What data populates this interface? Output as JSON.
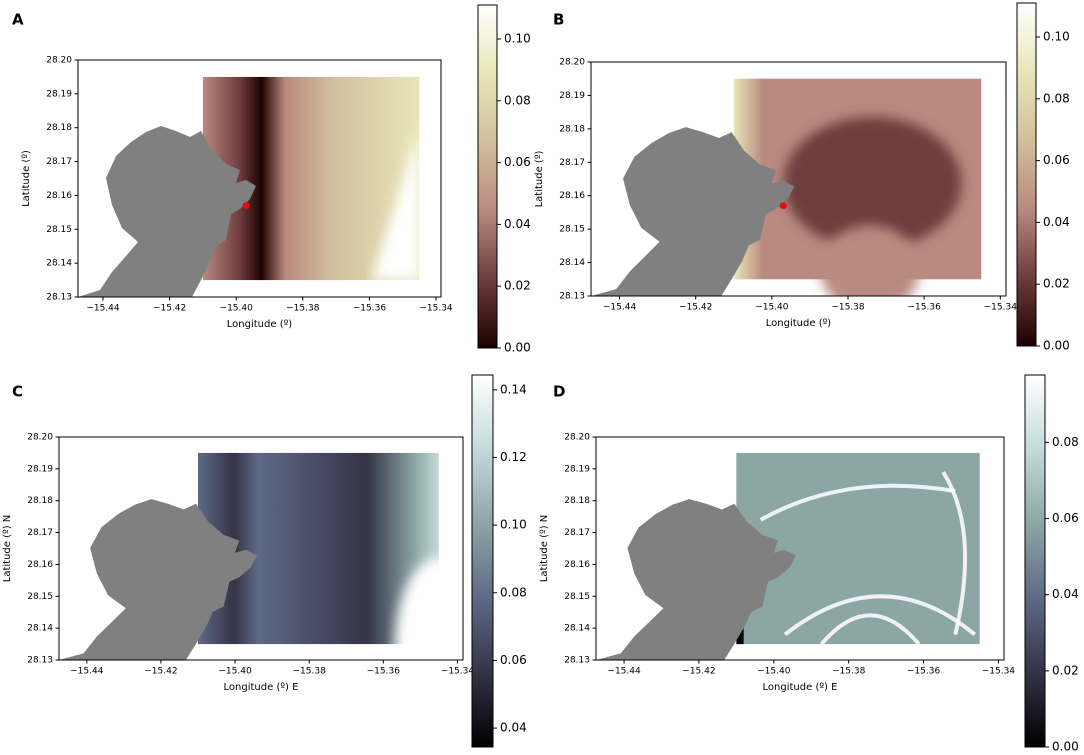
{
  "chart_data": [
    {
      "type": "heatmap",
      "panel": "A",
      "xlabel": "Longitude (º)",
      "ylabel": "Latitude (º)",
      "xlim": [
        -15.4475,
        -15.3385
      ],
      "ylim": [
        28.13,
        28.2
      ],
      "xticks": [
        {
          "value": -15.44,
          "label": "−15.44"
        },
        {
          "value": -15.42,
          "label": "−15.42"
        },
        {
          "value": -15.4,
          "label": "−15.40"
        },
        {
          "value": -15.38,
          "label": "−15.38"
        },
        {
          "value": -15.36,
          "label": "−15.36"
        },
        {
          "value": -15.34,
          "label": "−15.34"
        }
      ],
      "yticks": [
        28.13,
        28.14,
        28.15,
        28.16,
        28.17,
        28.18,
        28.19,
        {
          "value": 28.2,
          "label": "28.20"
        }
      ],
      "colorbar": {
        "lim": [
          0,
          0.111
        ],
        "ticks": [
          {
            "value": 0,
            "label": "0.00"
          },
          0.02,
          0.04,
          0.06,
          0.08,
          {
            "value": 0.1,
            "label": "0.10"
          }
        ]
      },
      "colormap": [
        "#1e0000",
        "#6e3c3c",
        "#b98a80",
        "#d2bf9c",
        "#e8e6b8",
        "#ffffff"
      ],
      "extent": [
        -15.41,
        -15.345,
        28.135,
        28.195
      ],
      "points": [
        {
          "x": -15.397,
          "y": 28.157,
          "color": "#e01010"
        }
      ]
    },
    {
      "type": "heatmap",
      "panel": "B",
      "xlabel": "Longitude (º)",
      "ylabel": "Latitude (º)",
      "xlim": [
        -15.4475,
        -15.3385
      ],
      "ylim": [
        28.13,
        28.2
      ],
      "xticks": [
        {
          "value": -15.44,
          "label": "−15.44"
        },
        {
          "value": -15.42,
          "label": "−15.42"
        },
        {
          "value": -15.4,
          "label": "−15.40"
        },
        {
          "value": -15.38,
          "label": "−15.38"
        },
        {
          "value": -15.36,
          "label": "−15.36"
        },
        {
          "value": -15.34,
          "label": "−15.34"
        }
      ],
      "yticks": [
        28.13,
        28.14,
        28.15,
        28.16,
        28.17,
        28.18,
        28.19,
        {
          "value": 28.2,
          "label": "28.20"
        }
      ],
      "colorbar": {
        "lim": [
          0,
          0.111
        ],
        "ticks": [
          {
            "value": 0,
            "label": "0.00"
          },
          0.02,
          0.04,
          0.06,
          0.08,
          {
            "value": 0.1,
            "label": "0.10"
          }
        ]
      },
      "colormap": [
        "#1e0000",
        "#6e3c3c",
        "#b98a80",
        "#d2bf9c",
        "#e8e6b8",
        "#ffffff"
      ],
      "extent": [
        -15.41,
        -15.345,
        28.135,
        28.195
      ],
      "points": [
        {
          "x": -15.397,
          "y": 28.157,
          "color": "#e01010"
        }
      ]
    },
    {
      "type": "heatmap",
      "panel": "C",
      "xlabel": "Longitude (º) E",
      "ylabel": "Latitude (º) N",
      "xlim": [
        -15.4475,
        -15.3385
      ],
      "ylim": [
        28.13,
        28.2
      ],
      "xticks": [
        {
          "value": -15.44,
          "label": "−15.44"
        },
        {
          "value": -15.42,
          "label": "−15.42"
        },
        {
          "value": -15.4,
          "label": "−15.40"
        },
        {
          "value": -15.38,
          "label": "−15.38"
        },
        {
          "value": -15.36,
          "label": "−15.36"
        },
        {
          "value": -15.34,
          "label": "−15.34"
        }
      ],
      "yticks": [
        28.13,
        28.14,
        28.15,
        28.16,
        28.17,
        28.18,
        28.19,
        {
          "value": 28.2,
          "label": "28.20"
        }
      ],
      "colorbar": {
        "lim": [
          0.0344,
          0.1444
        ],
        "ticks": [
          0.04,
          0.06,
          0.08,
          {
            "value": 0.1,
            "label": "0.10"
          },
          0.12,
          0.14
        ]
      },
      "colormap": [
        "#000000",
        "#343347",
        "#5f6a86",
        "#8ca5a5",
        "#c4dada",
        "#ffffff"
      ],
      "extent": [
        -15.41,
        -15.345,
        28.135,
        28.195
      ]
    },
    {
      "type": "heatmap",
      "panel": "D",
      "xlabel": "Longitude (º) E",
      "ylabel": "Latitude (º) N",
      "xlim": [
        -15.4475,
        -15.3385
      ],
      "ylim": [
        28.13,
        28.2
      ],
      "xticks": [
        {
          "value": -15.44,
          "label": "−15.44"
        },
        {
          "value": -15.42,
          "label": "−15.42"
        },
        {
          "value": -15.4,
          "label": "−15.40"
        },
        {
          "value": -15.38,
          "label": "−15.38"
        },
        {
          "value": -15.36,
          "label": "−15.36"
        },
        {
          "value": -15.34,
          "label": "−15.34"
        }
      ],
      "yticks": [
        28.13,
        28.14,
        28.15,
        28.16,
        28.17,
        28.18,
        28.19,
        {
          "value": 28.2,
          "label": "28.20"
        }
      ],
      "colorbar": {
        "lim": [
          0,
          0.0977
        ],
        "ticks": [
          {
            "value": 0,
            "label": "0.00"
          },
          0.02,
          0.04,
          0.06,
          0.08
        ]
      },
      "colormap": [
        "#000000",
        "#343347",
        "#5f6a86",
        "#8ca5a5",
        "#c4dada",
        "#ffffff"
      ],
      "extent": [
        -15.41,
        -15.345,
        28.135,
        28.195
      ]
    }
  ]
}
